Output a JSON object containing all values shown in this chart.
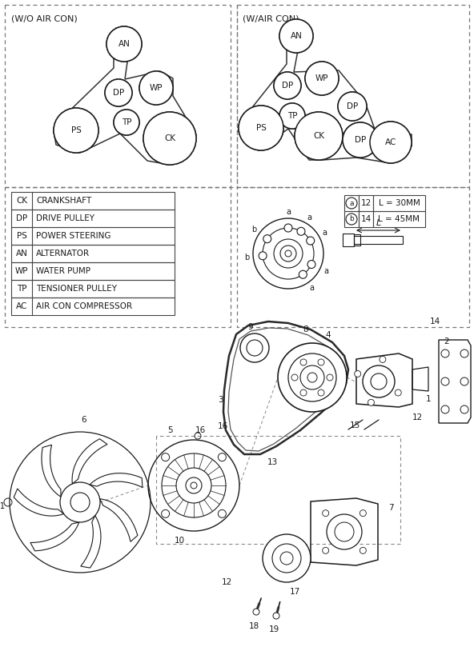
{
  "bg_color": "#ffffff",
  "line_color": "#1a1a1a",
  "title_woc": "(W/O AIR CON)",
  "title_wac": "(W/AIR CON)",
  "legend_rows": [
    [
      "CK",
      "CRANKSHAFT"
    ],
    [
      "DP",
      "DRIVE PULLEY"
    ],
    [
      "PS",
      "POWER STEERING"
    ],
    [
      "AN",
      "ALTERNATOR"
    ],
    [
      "WP",
      "WATER PUMP"
    ],
    [
      "TP",
      "TENSIONER PULLEY"
    ],
    [
      "AC",
      "AIR CON COMPRESSOR"
    ]
  ],
  "bolt_legend": [
    [
      "a",
      "12",
      "L = 30MM"
    ],
    [
      "b",
      "14",
      "L = 45MM"
    ]
  ]
}
